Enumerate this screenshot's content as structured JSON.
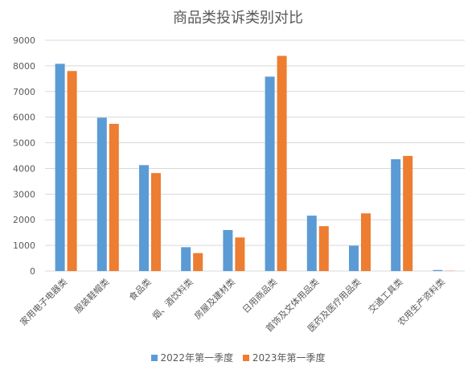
{
  "chart_data": {
    "type": "bar",
    "title": "商品类投诉类别对比",
    "xlabel": "",
    "ylabel": "",
    "ylim": [
      0,
      9000
    ],
    "yticks": [
      0,
      1000,
      2000,
      3000,
      4000,
      5000,
      6000,
      7000,
      8000,
      9000
    ],
    "grid": true,
    "legend_position": "bottom",
    "categories": [
      "家用电子电器类",
      "服装鞋帽类",
      "食品类",
      "烟、酒饮料类",
      "房屋及建材类",
      "日用商品类",
      "首饰及文体用品类",
      "医药及医疗用品类",
      "交通工具类",
      "农用生产资料类"
    ],
    "series": [
      {
        "name": "2022年第一季度",
        "color": "#5B9BD5",
        "values": [
          8080,
          5980,
          4130,
          930,
          1600,
          7580,
          2160,
          990,
          4360,
          40
        ]
      },
      {
        "name": "2023年第一季度",
        "color": "#ED7D31",
        "values": [
          7800,
          5740,
          3820,
          700,
          1310,
          8390,
          1750,
          2250,
          4490,
          10
        ]
      }
    ]
  }
}
